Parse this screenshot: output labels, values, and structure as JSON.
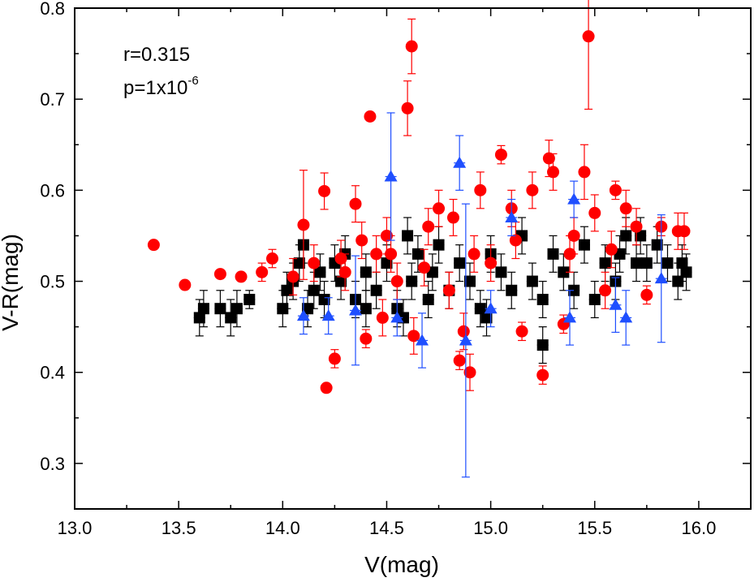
{
  "chart_data": {
    "type": "scatter",
    "title": "",
    "xlabel": "V(mag)",
    "ylabel": "V-R(mag)",
    "xlim": [
      13.0,
      16.25
    ],
    "ylim": [
      0.25,
      0.8
    ],
    "x_ticks": [
      "13.0",
      "13.5",
      "14.0",
      "14.5",
      "15.0",
      "15.5",
      "16.0"
    ],
    "x_tick_values": [
      13.0,
      13.5,
      14.0,
      14.5,
      15.0,
      15.5,
      16.0
    ],
    "y_ticks": [
      "0.3",
      "0.4",
      "0.5",
      "0.6",
      "0.7",
      "0.8"
    ],
    "y_tick_values": [
      0.3,
      0.4,
      0.5,
      0.6,
      0.7,
      0.8
    ],
    "grid": false,
    "annotations": {
      "r_text": "r=0.315",
      "p_text": "p=1x10",
      "p_exponent": "-6"
    },
    "series": [
      {
        "name": "black squares",
        "marker": "square",
        "color": "#000000",
        "points": [
          [
            13.6,
            0.46,
            0.02
          ],
          [
            13.62,
            0.47,
            0.02
          ],
          [
            13.7,
            0.47,
            0.02
          ],
          [
            13.75,
            0.46,
            0.02
          ],
          [
            13.78,
            0.47,
            0.02
          ],
          [
            13.84,
            0.48,
            0.01
          ],
          [
            14.0,
            0.47,
            0.02
          ],
          [
            14.02,
            0.49,
            0.02
          ],
          [
            14.05,
            0.5,
            0.02
          ],
          [
            14.08,
            0.52,
            0.02
          ],
          [
            14.1,
            0.54,
            0.02
          ],
          [
            14.12,
            0.47,
            0.02
          ],
          [
            14.15,
            0.49,
            0.02
          ],
          [
            14.18,
            0.51,
            0.02
          ],
          [
            14.2,
            0.48,
            0.02
          ],
          [
            14.25,
            0.52,
            0.02
          ],
          [
            14.28,
            0.5,
            0.02
          ],
          [
            14.3,
            0.53,
            0.02
          ],
          [
            14.35,
            0.48,
            0.02
          ],
          [
            14.4,
            0.51,
            0.02
          ],
          [
            14.45,
            0.49,
            0.02
          ],
          [
            14.5,
            0.52,
            0.02
          ],
          [
            14.55,
            0.47,
            0.02
          ],
          [
            14.6,
            0.55,
            0.02
          ],
          [
            14.62,
            0.5,
            0.02
          ],
          [
            14.65,
            0.53,
            0.02
          ],
          [
            14.7,
            0.48,
            0.02
          ],
          [
            14.72,
            0.51,
            0.02
          ],
          [
            14.75,
            0.54,
            0.02
          ],
          [
            14.8,
            0.49,
            0.02
          ],
          [
            14.85,
            0.52,
            0.02
          ],
          [
            14.9,
            0.5,
            0.02
          ],
          [
            14.95,
            0.47,
            0.02
          ],
          [
            15.0,
            0.53,
            0.02
          ],
          [
            15.05,
            0.51,
            0.02
          ],
          [
            15.1,
            0.49,
            0.02
          ],
          [
            15.15,
            0.55,
            0.02
          ],
          [
            15.2,
            0.5,
            0.02
          ],
          [
            15.25,
            0.48,
            0.02
          ],
          [
            15.3,
            0.53,
            0.02
          ],
          [
            15.35,
            0.51,
            0.02
          ],
          [
            15.4,
            0.49,
            0.02
          ],
          [
            15.45,
            0.54,
            0.02
          ],
          [
            15.5,
            0.48,
            0.02
          ],
          [
            15.55,
            0.52,
            0.02
          ],
          [
            15.6,
            0.5,
            0.02
          ],
          [
            15.62,
            0.53,
            0.02
          ],
          [
            15.65,
            0.55,
            0.02
          ],
          [
            15.7,
            0.52,
            0.02
          ],
          [
            15.72,
            0.55,
            0.02
          ],
          [
            15.75,
            0.52,
            0.02
          ],
          [
            15.8,
            0.54,
            0.02
          ],
          [
            15.85,
            0.52,
            0.02
          ],
          [
            15.9,
            0.5,
            0.02
          ],
          [
            15.92,
            0.52,
            0.02
          ],
          [
            15.94,
            0.51,
            0.02
          ],
          [
            14.4,
            0.47,
            0.02
          ],
          [
            14.58,
            0.46,
            0.02
          ],
          [
            14.98,
            0.46,
            0.02
          ],
          [
            15.25,
            0.43,
            0.02
          ]
        ]
      },
      {
        "name": "red circles",
        "marker": "circle",
        "color": "#ff0000",
        "points": [
          [
            13.38,
            0.54,
            0.0
          ],
          [
            13.53,
            0.496,
            0.0
          ],
          [
            13.7,
            0.508,
            0.0
          ],
          [
            13.8,
            0.505,
            0.0
          ],
          [
            13.9,
            0.51,
            0.01
          ],
          [
            13.95,
            0.525,
            0.01
          ],
          [
            14.1,
            0.562,
            0.06
          ],
          [
            14.15,
            0.52,
            0.02
          ],
          [
            14.2,
            0.599,
            0.02
          ],
          [
            14.21,
            0.383,
            0.0
          ],
          [
            14.25,
            0.415,
            0.01
          ],
          [
            14.3,
            0.51,
            0.02
          ],
          [
            14.35,
            0.585,
            0.02
          ],
          [
            14.4,
            0.437,
            0.01
          ],
          [
            14.42,
            0.681,
            0.0
          ],
          [
            14.45,
            0.53,
            0.02
          ],
          [
            14.48,
            0.46,
            0.02
          ],
          [
            14.5,
            0.55,
            0.02
          ],
          [
            14.55,
            0.5,
            0.02
          ],
          [
            14.6,
            0.69,
            0.03
          ],
          [
            14.62,
            0.758,
            0.03
          ],
          [
            14.63,
            0.44,
            0.02
          ],
          [
            14.7,
            0.56,
            0.02
          ],
          [
            14.75,
            0.58,
            0.02
          ],
          [
            14.8,
            0.49,
            0.02
          ],
          [
            14.85,
            0.413,
            0.01
          ],
          [
            14.87,
            0.445,
            0.02
          ],
          [
            14.9,
            0.4,
            0.02
          ],
          [
            14.95,
            0.6,
            0.02
          ],
          [
            15.0,
            0.52,
            0.02
          ],
          [
            15.05,
            0.639,
            0.01
          ],
          [
            15.1,
            0.58,
            0.02
          ],
          [
            15.15,
            0.445,
            0.01
          ],
          [
            15.2,
            0.6,
            0.02
          ],
          [
            15.25,
            0.397,
            0.01
          ],
          [
            15.28,
            0.635,
            0.02
          ],
          [
            15.3,
            0.62,
            0.02
          ],
          [
            15.35,
            0.453,
            0.01
          ],
          [
            15.4,
            0.55,
            0.02
          ],
          [
            15.45,
            0.62,
            0.03
          ],
          [
            15.47,
            0.769,
            0.08
          ],
          [
            15.5,
            0.575,
            0.02
          ],
          [
            15.55,
            0.49,
            0.02
          ],
          [
            15.6,
            0.6,
            0.01
          ],
          [
            15.65,
            0.58,
            0.02
          ],
          [
            15.7,
            0.56,
            0.02
          ],
          [
            15.75,
            0.485,
            0.01
          ],
          [
            15.82,
            0.56,
            0.01
          ],
          [
            15.9,
            0.555,
            0.02
          ],
          [
            15.93,
            0.555,
            0.02
          ],
          [
            14.05,
            0.505,
            0.02
          ],
          [
            14.28,
            0.525,
            0.02
          ],
          [
            14.52,
            0.53,
            0.02
          ],
          [
            14.68,
            0.515,
            0.02
          ],
          [
            14.92,
            0.53,
            0.02
          ],
          [
            15.12,
            0.545,
            0.02
          ],
          [
            15.38,
            0.53,
            0.02
          ],
          [
            15.58,
            0.535,
            0.02
          ],
          [
            14.38,
            0.545,
            0.02
          ],
          [
            14.82,
            0.57,
            0.02
          ]
        ]
      },
      {
        "name": "blue triangles",
        "marker": "triangle",
        "color": "#1f4fff",
        "points": [
          [
            14.1,
            0.462,
            0.02
          ],
          [
            14.22,
            0.462,
            0.02
          ],
          [
            14.35,
            0.468,
            0.06
          ],
          [
            14.52,
            0.615,
            0.07
          ],
          [
            14.55,
            0.46,
            0.02
          ],
          [
            14.67,
            0.435,
            0.03
          ],
          [
            14.85,
            0.63,
            0.03
          ],
          [
            14.88,
            0.435,
            0.15
          ],
          [
            15.0,
            0.47,
            0.02
          ],
          [
            15.1,
            0.57,
            0.02
          ],
          [
            15.38,
            0.46,
            0.03
          ],
          [
            15.4,
            0.59,
            0.02
          ],
          [
            15.6,
            0.474,
            0.03
          ],
          [
            15.65,
            0.46,
            0.03
          ],
          [
            15.82,
            0.503,
            0.07
          ]
        ]
      }
    ]
  }
}
